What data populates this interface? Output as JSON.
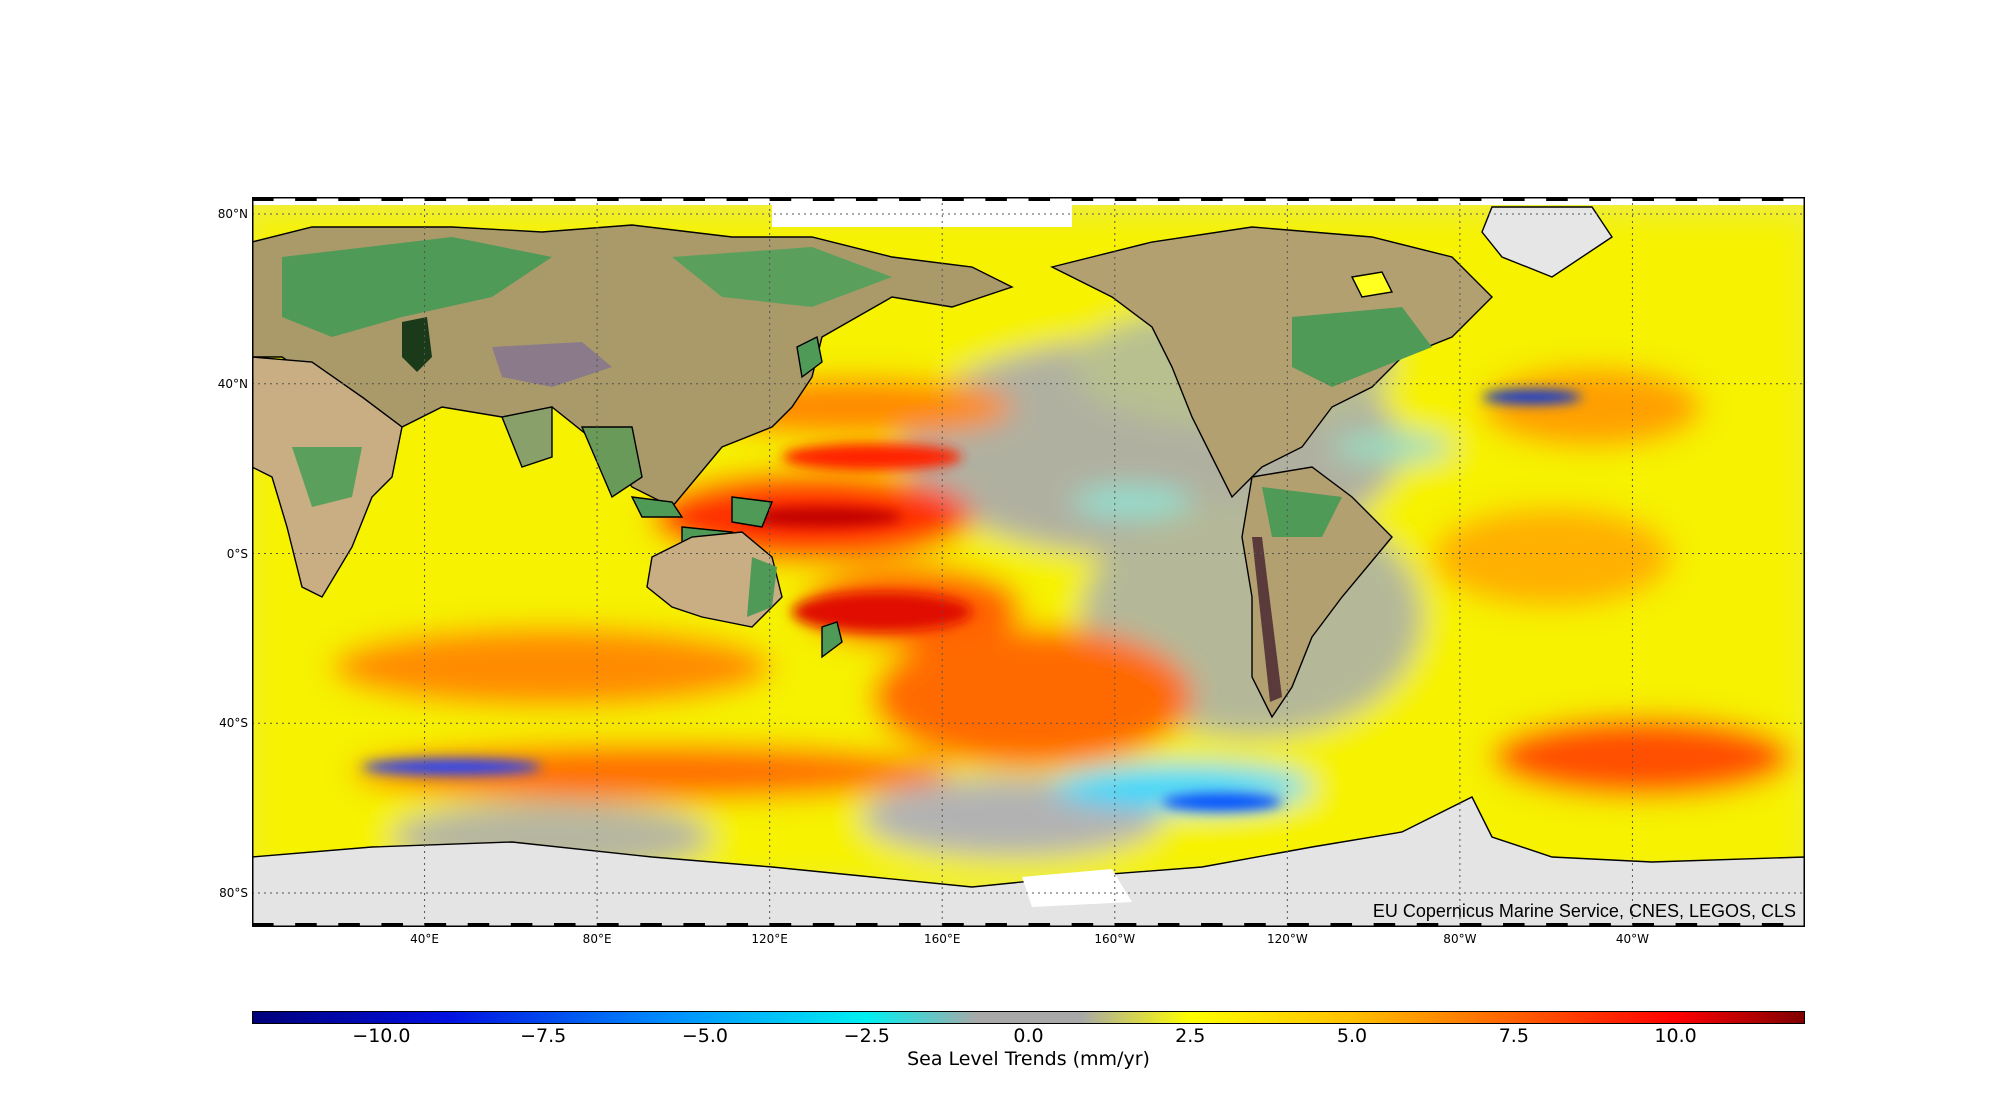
{
  "map": {
    "lat_labels": [
      "80°N",
      "40°N",
      "0°S",
      "40°S",
      "80°S"
    ],
    "lat_values": [
      80,
      40,
      0,
      -40,
      -80
    ],
    "lon_labels": [
      "40°E",
      "80°E",
      "120°E",
      "160°E",
      "160°W",
      "120°W",
      "80°W",
      "40°W"
    ],
    "lon_values": [
      40,
      80,
      120,
      160,
      200,
      240,
      280,
      320
    ],
    "lon_range": [
      0,
      360
    ],
    "lat_range": [
      -88,
      84
    ],
    "grid": true,
    "credit": "EU Copernicus Marine Service, CNES, LEGOS, CLS",
    "colors": {
      "ocean_neutral": "#a8a8a8",
      "ocean_rise": "#ffff00",
      "ocean_high": "#ff8000",
      "ocean_very_high": "#e00000",
      "ocean_fall": "#00e0ff",
      "ocean_strong_fall": "#0030d0",
      "land_low": "#3f9a4f",
      "land_high": "#b39a6a",
      "ice": "#ececec"
    }
  },
  "colorbar": {
    "label": "Sea Level Trends (mm/yr)",
    "ticks": [
      "−10.0",
      "−7.5",
      "−5.0",
      "−2.5",
      "0.0",
      "2.5",
      "5.0",
      "7.5",
      "10.0"
    ],
    "tick_values": [
      -10,
      -7.5,
      -5,
      -2.5,
      0,
      2.5,
      5,
      7.5,
      10
    ],
    "range": [
      -12,
      12
    ],
    "stops": [
      {
        "v": -12,
        "c": "#00007a"
      },
      {
        "v": -9,
        "c": "#0010e0"
      },
      {
        "v": -5.5,
        "c": "#0090ff"
      },
      {
        "v": -2.5,
        "c": "#00f0f0"
      },
      {
        "v": -0.8,
        "c": "#a8a8a8"
      },
      {
        "v": 0.8,
        "c": "#a8a8a8"
      },
      {
        "v": 2.5,
        "c": "#ffff00"
      },
      {
        "v": 5,
        "c": "#ffc000"
      },
      {
        "v": 7.5,
        "c": "#ff6000"
      },
      {
        "v": 10,
        "c": "#ff0000"
      },
      {
        "v": 12,
        "c": "#800000"
      }
    ]
  }
}
